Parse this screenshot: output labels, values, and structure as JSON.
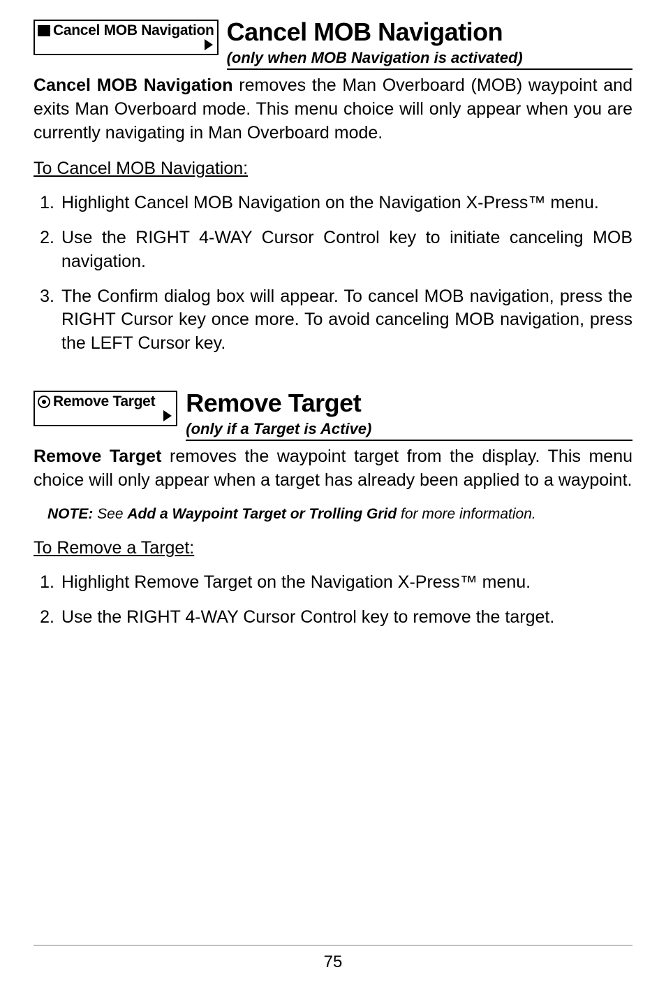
{
  "section1": {
    "menu_label": "Cancel MOB Navigation",
    "title": "Cancel MOB Navigation",
    "subtitle": "(only when MOB Navigation is activated)",
    "body_bold": "Cancel MOB Navigation",
    "body_rest": " removes the Man Overboard (MOB) waypoint and exits Man Overboard mode. This menu choice will only appear when you are currently navigating in Man Overboard mode.",
    "procedure_heading": "To Cancel MOB Navigation:",
    "steps": [
      "Highlight Cancel MOB Navigation on the Navigation X-Press™ menu.",
      "Use the RIGHT 4-WAY Cursor Control key to initiate canceling MOB navigation.",
      "The Confirm dialog box will appear. To cancel MOB navigation, press the RIGHT Cursor key once more. To avoid canceling MOB navigation, press the LEFT Cursor key."
    ]
  },
  "section2": {
    "menu_label": "Remove Target",
    "title": "Remove Target",
    "subtitle": "(only if a Target is Active)",
    "body_bold": "Remove Target",
    "body_rest": " removes the waypoint target from the display. This menu choice will only appear when a target has already been applied to a waypoint.",
    "note_label": "NOTE:",
    "note_pre": " See ",
    "note_bold": "Add a Waypoint Target or Trolling Grid",
    "note_post": " for more information.",
    "procedure_heading": "To Remove a Target:",
    "steps": [
      "Highlight Remove Target on the Navigation X-Press™ menu.",
      "Use the RIGHT 4-WAY Cursor Control key to remove the target."
    ]
  },
  "page_number": "75"
}
